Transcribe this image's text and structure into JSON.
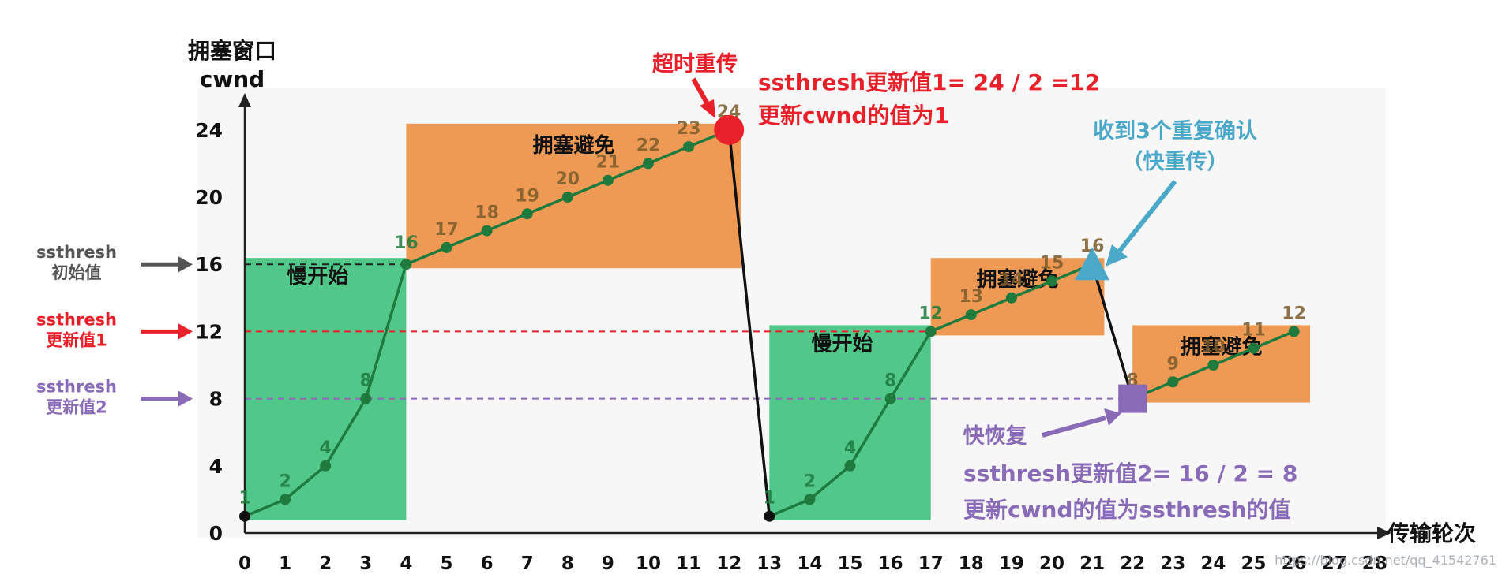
{
  "chart_data": {
    "type": "line",
    "title": "",
    "ylabel_line1": "拥塞窗口",
    "ylabel_line2": "cwnd",
    "xlabel": "传输轮次",
    "xlim": [
      0,
      28
    ],
    "ylim": [
      0,
      24
    ],
    "x_ticks": [
      0,
      1,
      2,
      3,
      4,
      5,
      6,
      7,
      8,
      9,
      10,
      11,
      12,
      13,
      14,
      15,
      16,
      17,
      18,
      19,
      20,
      21,
      22,
      23,
      24,
      25,
      26,
      27,
      28
    ],
    "y_ticks": [
      0,
      4,
      8,
      12,
      16,
      20,
      24
    ],
    "grid": false,
    "series": [
      {
        "points": [
          [
            0,
            1
          ],
          [
            1,
            2
          ],
          [
            2,
            4
          ],
          [
            3,
            8
          ],
          [
            4,
            16
          ],
          [
            5,
            17
          ],
          [
            6,
            18
          ],
          [
            7,
            19
          ],
          [
            8,
            20
          ],
          [
            9,
            21
          ],
          [
            10,
            22
          ],
          [
            11,
            23
          ],
          [
            12,
            24
          ],
          [
            13,
            1
          ],
          [
            14,
            2
          ],
          [
            15,
            4
          ],
          [
            16,
            8
          ],
          [
            17,
            12
          ],
          [
            18,
            13
          ],
          [
            19,
            14
          ],
          [
            20,
            15
          ],
          [
            21,
            16
          ],
          [
            22,
            8
          ],
          [
            23,
            9
          ],
          [
            24,
            10
          ],
          [
            25,
            11
          ],
          [
            26,
            12
          ]
        ]
      }
    ],
    "regions": [
      {
        "label": "慢开始",
        "x": [
          0,
          4
        ],
        "y": [
          1,
          16
        ],
        "color": "#52c78a"
      },
      {
        "label": "拥塞避免",
        "x": [
          4,
          12.3
        ],
        "y": [
          16,
          24
        ],
        "color": "#ee9a55"
      },
      {
        "label": "慢开始",
        "x": [
          13,
          17
        ],
        "y": [
          1,
          12
        ],
        "color": "#52c78a"
      },
      {
        "label": "拥塞避免",
        "x": [
          17,
          21.3
        ],
        "y": [
          12,
          16
        ],
        "color": "#ee9a55"
      },
      {
        "label": "拥塞避免",
        "x": [
          22,
          26.4
        ],
        "y": [
          8,
          12
        ],
        "color": "#ee9a55"
      }
    ],
    "thresholds": [
      {
        "y": 16,
        "x_end": 4,
        "color": "#222222",
        "label_line1": "ssthresh",
        "label_line2": "初始值"
      },
      {
        "y": 12,
        "x_end": 17,
        "color": "#e8202a",
        "label_line1": "ssthresh",
        "label_line2": "更新值1"
      },
      {
        "y": 8,
        "x_end": 22,
        "color": "#8a6bb8",
        "label_line1": "ssthresh",
        "label_line2": "更新值2"
      }
    ],
    "annotations": {
      "timeout_title": "超时重传",
      "timeout_line1": "ssthresh更新值1= 24 / 2 =12",
      "timeout_line2": "更新cwnd的值为1",
      "dupack_line1": "收到3个重复确认",
      "dupack_line2": "（快重传）",
      "fast_recovery": "快恢复",
      "fast_recovery_line1": "ssthresh更新值2= 16 / 2 = 8",
      "fast_recovery_line2": "更新cwnd的值为ssthresh的值"
    },
    "watermark": "https://blog.csdn.net/qq_41542761"
  },
  "colors": {
    "green": "#52c78a",
    "orange": "#ee9a55",
    "red": "#e8202a",
    "purple": "#8a6bb8",
    "cyan": "#4aa8c8",
    "line": "#1f7a3d",
    "axis": "#222222",
    "value_label": "#7a5a2a",
    "title_red": "#e8202a"
  }
}
